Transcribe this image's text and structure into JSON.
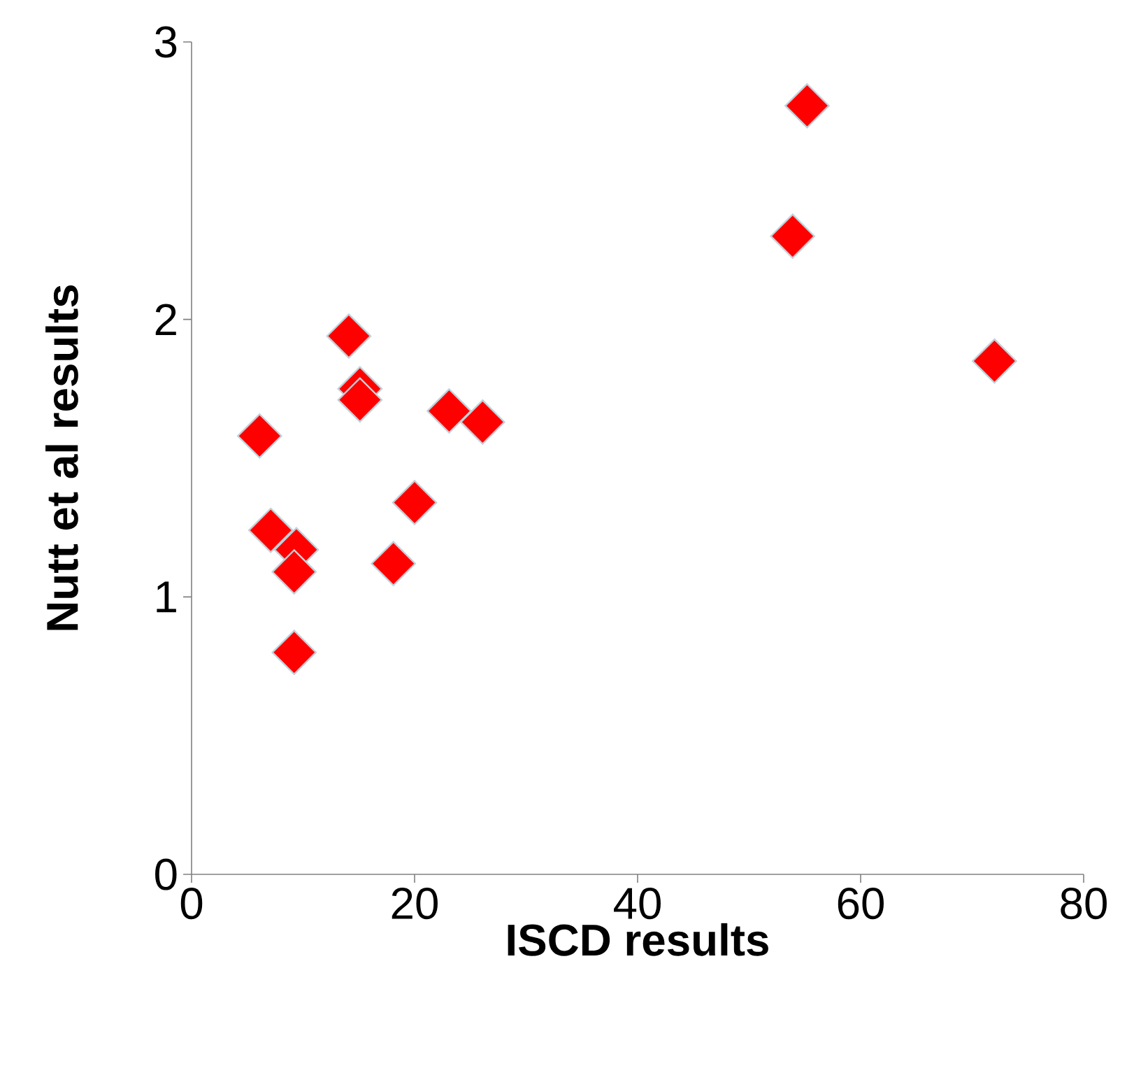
{
  "chart_data": {
    "type": "scatter",
    "xlabel": "ISCD results",
    "ylabel": "Nutt et al results",
    "x": [
      6.1,
      7.1,
      9.4,
      9.2,
      9.2,
      14.1,
      15.1,
      15.1,
      18.1,
      20.0,
      23.1,
      26.1,
      53.9,
      55.2,
      72.0
    ],
    "values": [
      1.58,
      1.24,
      1.17,
      1.09,
      0.8,
      1.94,
      1.75,
      1.71,
      1.12,
      1.34,
      1.67,
      1.63,
      2.3,
      2.77,
      1.85
    ],
    "color": "#ff0000",
    "marker": "diamond",
    "xlim": [
      0,
      80
    ],
    "xticks": [
      0,
      20,
      40,
      60,
      80
    ],
    "ylim": [
      0,
      3
    ],
    "yticks": [
      0,
      1,
      2,
      3
    ],
    "grid": false
  }
}
